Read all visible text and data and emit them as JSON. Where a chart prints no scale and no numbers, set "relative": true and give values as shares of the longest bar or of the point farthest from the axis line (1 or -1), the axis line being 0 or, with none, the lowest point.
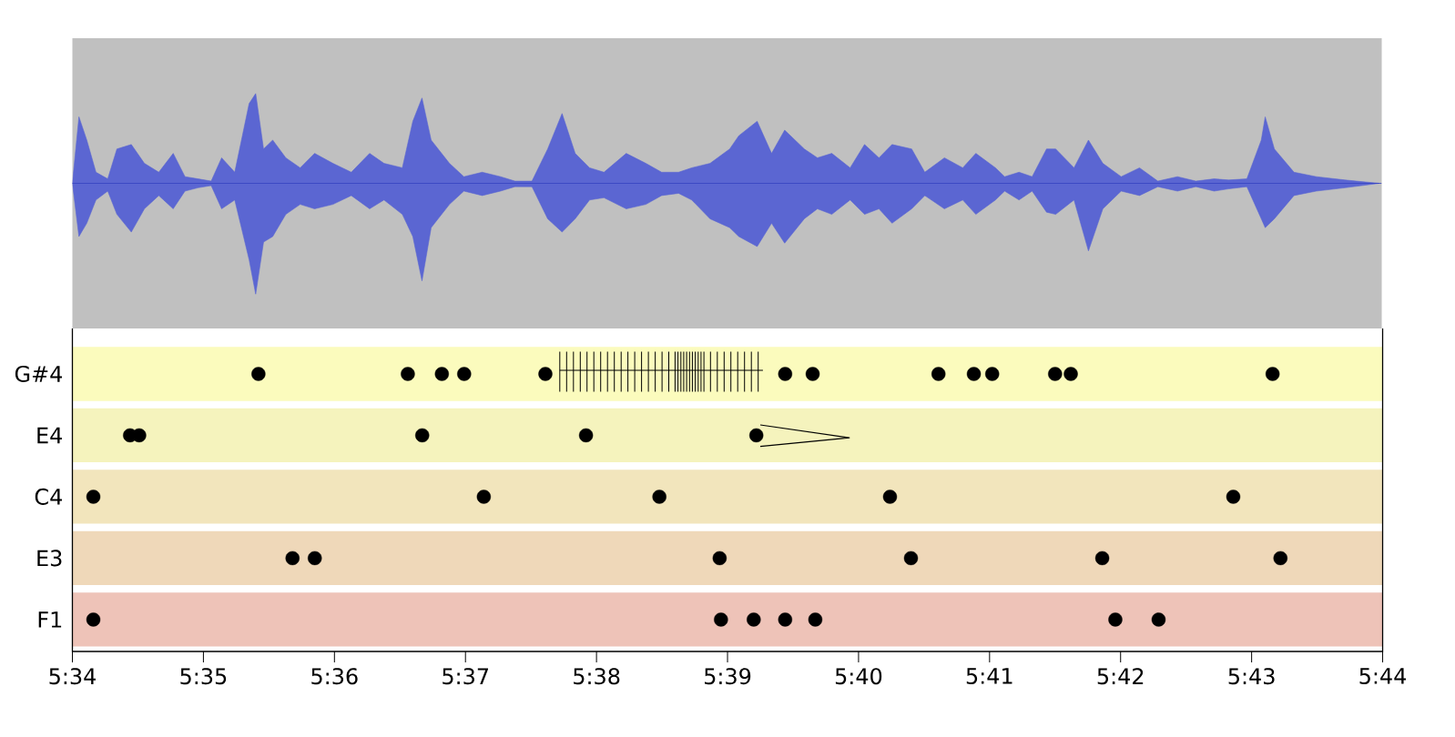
{
  "chart_data": [
    {
      "type": "area",
      "relative": true,
      "xlim": [
        334,
        344
      ],
      "x": [
        334.0,
        334.05,
        334.11,
        334.18,
        334.27,
        334.34,
        334.45,
        334.55,
        334.66,
        334.77,
        334.86,
        334.96,
        335.06,
        335.14,
        335.24,
        335.35,
        335.4,
        335.46,
        335.53,
        335.63,
        335.74,
        335.85,
        335.99,
        336.13,
        336.27,
        336.38,
        336.52,
        336.6,
        336.67,
        336.74,
        336.88,
        336.99,
        337.13,
        337.27,
        337.38,
        337.51,
        337.63,
        337.74,
        337.84,
        337.95,
        338.06,
        338.23,
        338.38,
        338.5,
        338.63,
        338.73,
        338.87,
        339.02,
        339.09,
        339.23,
        339.34,
        339.44,
        339.59,
        339.69,
        339.8,
        339.94,
        340.05,
        340.16,
        340.26,
        340.41,
        340.51,
        340.66,
        340.8,
        340.9,
        341.05,
        341.12,
        341.23,
        341.33,
        341.44,
        341.51,
        341.65,
        341.76,
        341.87,
        342.01,
        342.15,
        342.29,
        342.44,
        342.58,
        342.72,
        342.83,
        342.97,
        343.08,
        343.11,
        343.18,
        343.33,
        343.5,
        343.72,
        343.98
      ],
      "series": [
        {
          "color": "#5b66d2",
          "values": [
            0,
            0.6,
            0.39,
            0.1,
            0.04,
            0.31,
            0.35,
            0.18,
            0.1,
            0.27,
            0.06,
            0.04,
            0.02,
            0.23,
            0.1,
            0.72,
            0.81,
            0.31,
            0.39,
            0.23,
            0.14,
            0.27,
            0.18,
            0.1,
            0.27,
            0.18,
            0.14,
            0.56,
            0.77,
            0.39,
            0.18,
            0.06,
            0.1,
            0.06,
            0.02,
            0.02,
            0.31,
            0.63,
            0.27,
            0.14,
            0.1,
            0.27,
            0.18,
            0.1,
            0.1,
            0.14,
            0.18,
            0.31,
            0.43,
            0.56,
            0.27,
            0.48,
            0.31,
            0.23,
            0.27,
            0.14,
            0.35,
            0.23,
            0.35,
            0.31,
            0.1,
            0.23,
            0.14,
            0.27,
            0.14,
            0.06,
            0.1,
            0.06,
            0.31,
            0.31,
            0.14,
            0.39,
            0.18,
            0.06,
            0.14,
            0.02,
            0.06,
            0.02,
            0.04,
            0.03,
            0.04,
            0.39,
            0.6,
            0.31,
            0.1,
            0.06,
            0.03,
            0
          ]
        },
        {
          "color": "#5b66d2",
          "values": [
            0,
            -0.48,
            -0.36,
            -0.15,
            -0.07,
            -0.28,
            -0.44,
            -0.23,
            -0.11,
            -0.23,
            -0.07,
            -0.04,
            -0.02,
            -0.23,
            -0.15,
            -0.69,
            -1,
            -0.53,
            -0.48,
            -0.28,
            -0.19,
            -0.23,
            -0.19,
            -0.11,
            -0.23,
            -0.15,
            -0.28,
            -0.48,
            -0.88,
            -0.4,
            -0.19,
            -0.07,
            -0.11,
            -0.07,
            -0.03,
            -0.03,
            -0.32,
            -0.44,
            -0.32,
            -0.15,
            -0.13,
            -0.23,
            -0.19,
            -0.11,
            -0.09,
            -0.15,
            -0.32,
            -0.4,
            -0.48,
            -0.57,
            -0.36,
            -0.54,
            -0.32,
            -0.23,
            -0.28,
            -0.15,
            -0.28,
            -0.23,
            -0.36,
            -0.23,
            -0.11,
            -0.23,
            -0.15,
            -0.28,
            -0.15,
            -0.07,
            -0.15,
            -0.07,
            -0.26,
            -0.28,
            -0.15,
            -0.61,
            -0.23,
            -0.07,
            -0.11,
            -0.03,
            -0.07,
            -0.03,
            -0.07,
            -0.05,
            -0.03,
            -0.32,
            -0.4,
            -0.32,
            -0.11,
            -0.07,
            -0.04,
            0
          ]
        }
      ]
    },
    {
      "type": "scatter",
      "marker": "circle",
      "orientation": "horizontal",
      "xlim": [
        334,
        344
      ],
      "categories": [
        "G#4",
        "E4",
        "C4",
        "E3",
        "F1"
      ],
      "xticks": [
        {
          "value": 334,
          "label": "5:34"
        },
        {
          "value": 335,
          "label": "5:35"
        },
        {
          "value": 336,
          "label": "5:36"
        },
        {
          "value": 337,
          "label": "5:37"
        },
        {
          "value": 338,
          "label": "5:38"
        },
        {
          "value": 339,
          "label": "5:39"
        },
        {
          "value": 340,
          "label": "5:40"
        },
        {
          "value": 341,
          "label": "5:41"
        },
        {
          "value": 342,
          "label": "5:42"
        },
        {
          "value": 343,
          "label": "5:43"
        },
        {
          "value": 344,
          "label": "5:44"
        }
      ],
      "bands": [
        {
          "axis": "y",
          "from": "G#4",
          "to": "G#4",
          "color": "#fbfbbd"
        },
        {
          "axis": "y",
          "from": "E4",
          "to": "E4",
          "color": "#f5f3bd"
        },
        {
          "axis": "y",
          "from": "C4",
          "to": "C4",
          "color": "#f2e5bc"
        },
        {
          "axis": "y",
          "from": "E3",
          "to": "E3",
          "color": "#efd8b9"
        },
        {
          "axis": "y",
          "from": "F1",
          "to": "F1",
          "color": "#eec3b8"
        }
      ],
      "series": [
        {
          "color": "#000000",
          "values": [
            335.42,
            334.44,
            334.16,
            335.68,
            334.16
          ]
        },
        {
          "color": "#000000",
          "values": [
            336.56,
            334.51,
            337.14,
            335.85,
            338.95
          ]
        },
        {
          "color": "#000000",
          "values": [
            336.82,
            336.67,
            338.48,
            338.94,
            339.2
          ]
        },
        {
          "color": "#000000",
          "values": [
            336.99,
            337.92,
            340.24,
            340.4,
            339.44
          ]
        },
        {
          "color": "#000000",
          "values": [
            337.61,
            339.22,
            342.86,
            341.86,
            339.67
          ]
        },
        {
          "color": "#000000",
          "values": [
            339.44,
            null,
            null,
            343.22,
            341.96
          ]
        },
        {
          "color": "#000000",
          "values": [
            339.65,
            null,
            null,
            null,
            342.29
          ]
        },
        {
          "color": "#000000",
          "values": [
            340.61,
            null,
            null,
            null,
            null
          ]
        },
        {
          "color": "#000000",
          "values": [
            340.88,
            null,
            null,
            null,
            null
          ]
        },
        {
          "color": "#000000",
          "values": [
            341.02,
            null,
            null,
            null,
            null
          ]
        },
        {
          "color": "#000000",
          "values": [
            341.5,
            null,
            null,
            null,
            null
          ]
        },
        {
          "color": "#000000",
          "values": [
            341.62,
            null,
            null,
            null,
            null
          ]
        },
        {
          "color": "#000000",
          "values": [
            343.16,
            null,
            null,
            null,
            null
          ]
        }
      ]
    }
  ]
}
